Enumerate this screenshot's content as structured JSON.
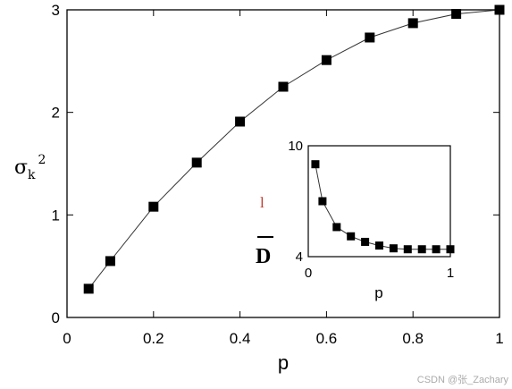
{
  "chart_data": [
    {
      "type": "line",
      "xlabel": "p",
      "ylabel_main": "σ",
      "ylabel_sub": "k",
      "ylabel_sup": "2",
      "xlim": [
        0,
        1
      ],
      "ylim": [
        0,
        3
      ],
      "xticks": [
        "0",
        "0.2",
        "0.4",
        "0.6",
        "0.8",
        "1"
      ],
      "xtick_values": [
        0,
        0.2,
        0.4,
        0.6,
        0.8,
        1
      ],
      "yticks": [
        "0",
        "1",
        "2",
        "3"
      ],
      "ytick_values": [
        0,
        1,
        2,
        3
      ],
      "marker": "square",
      "grid": false,
      "x": [
        0.05,
        0.1,
        0.2,
        0.3,
        0.4,
        0.5,
        0.6,
        0.7,
        0.8,
        0.9,
        1.0
      ],
      "y": [
        0.28,
        0.55,
        1.08,
        1.51,
        1.91,
        2.25,
        2.51,
        2.73,
        2.87,
        2.96,
        3.0
      ]
    },
    {
      "type": "line",
      "xlabel": "p",
      "ylabel_red": "l",
      "ylabel_main": "D",
      "xlim": [
        0,
        1
      ],
      "ylim": [
        4,
        10
      ],
      "xticks": [
        "0",
        "1"
      ],
      "xtick_values": [
        0,
        1
      ],
      "yticks": [
        "4",
        "10"
      ],
      "ytick_values": [
        4,
        10
      ],
      "marker": "square",
      "grid": false,
      "x": [
        0.05,
        0.1,
        0.2,
        0.3,
        0.4,
        0.5,
        0.6,
        0.7,
        0.8,
        0.9,
        1.0
      ],
      "y": [
        9.0,
        7.0,
        5.6,
        5.1,
        4.8,
        4.6,
        4.45,
        4.4,
        4.4,
        4.4,
        4.4
      ]
    }
  ],
  "watermark": "CSDN @张_Zachary"
}
